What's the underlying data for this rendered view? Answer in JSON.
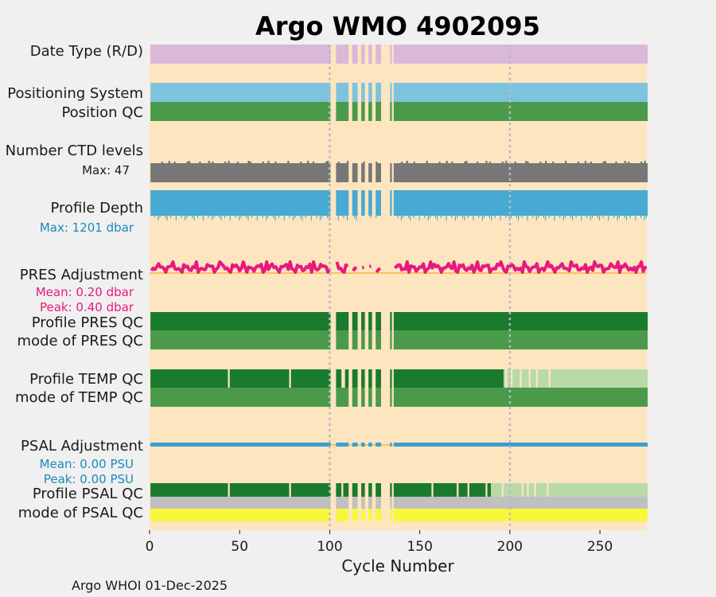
{
  "chart_data": {
    "type": "timeline",
    "title": "Argo WMO 4902095",
    "xlabel": "Cycle Number",
    "xlim": [
      0,
      276
    ],
    "xticks": [
      0,
      50,
      100,
      150,
      200,
      250
    ],
    "reference_lines": [
      100,
      200
    ],
    "gap_cycles": [
      101,
      102,
      103,
      111,
      112,
      116,
      117,
      120,
      121,
      124,
      125,
      129,
      130,
      131,
      132,
      133,
      135
    ],
    "rows": [
      {
        "key": "date_type",
        "label": "Date Type (R/D)",
        "color": "#d9b8d9"
      },
      {
        "key": "positioning_system",
        "label": "Positioning System",
        "color": "#7ec3de"
      },
      {
        "key": "position_qc",
        "label": "Position QC",
        "color": "#4a9a4a"
      },
      {
        "key": "n_ctd_levels",
        "label": "Number CTD levels",
        "sublabel": "Max: 47",
        "color": "#777777"
      },
      {
        "key": "profile_depth",
        "label": "Profile Depth",
        "sublabel": "Max: 1201 dbar",
        "color": "#47aad2"
      },
      {
        "key": "pres_adjustment",
        "label": "PRES Adjustment",
        "sublabels": [
          "Mean: 0.20 dbar",
          "Peak: 0.40 dbar"
        ],
        "color": "#e8197e"
      },
      {
        "key": "profile_pres_qc",
        "label": "Profile PRES QC",
        "color": "#1a7a2e"
      },
      {
        "key": "mode_pres_qc",
        "label": "mode of PRES QC",
        "color": "#4a9a4a"
      },
      {
        "key": "profile_temp_qc",
        "label": "Profile TEMP QC",
        "color": "#1a7a2e",
        "light_color": "#b8d9a8"
      },
      {
        "key": "mode_temp_qc",
        "label": "mode of TEMP QC",
        "color": "#4a9a4a"
      },
      {
        "key": "psal_adjustment",
        "label": "PSAL Adjustment",
        "sublabels": [
          "Mean: 0.00 PSU",
          "Peak: 0.00 PSU"
        ],
        "color": "#3aa0d0"
      },
      {
        "key": "profile_psal_qc",
        "label": "Profile PSAL QC",
        "color": "#1a7a2e",
        "light_color": "#b8d9a8"
      },
      {
        "key": "mode_psal_qc",
        "label": "mode of PSAL QC",
        "colors": [
          "#c0c0c0",
          "#f8f83a"
        ]
      }
    ],
    "temp_qc_light_from_cycle": 197,
    "psal_qc_light_from_cycle": 190,
    "footer": "Argo WHOI 01-Dec-2025"
  },
  "colors": {
    "background": "#fde5c0",
    "title": "#0a8abc",
    "ctd_sublabel": "#1a1a1a",
    "depth_sublabel": "#1a8abc",
    "pres_sublabel": "#e8197e",
    "psal_sublabel": "#1a8abc",
    "orange_line": "#f0b840"
  }
}
